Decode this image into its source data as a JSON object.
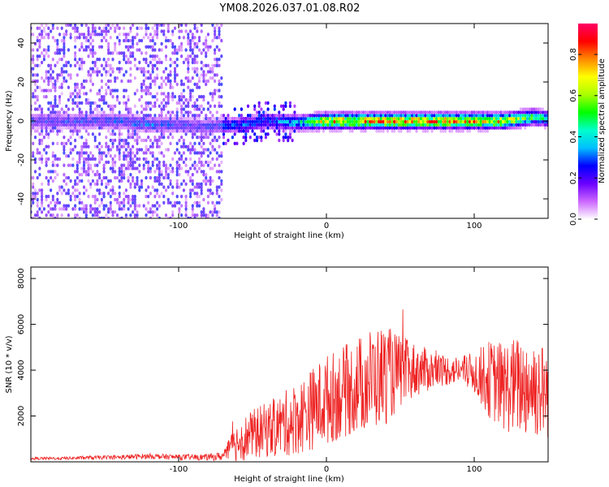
{
  "title": "YM08.2026.037.01.08.R02",
  "chart_data": [
    {
      "type": "heatmap",
      "xlabel": "Height of straight line (km)",
      "ylabel": "Frequency (Hz)",
      "xlim": [
        -200,
        150
      ],
      "ylim": [
        -50,
        50
      ],
      "x_ticks": [
        -100,
        0,
        100
      ],
      "y_ticks": [
        -40,
        -20,
        0,
        20,
        40
      ],
      "colorbar": {
        "label": "Normalized spectral amplitude",
        "range": [
          0,
          0.95
        ],
        "ticks": [
          "0.0",
          "0.2",
          "0.4",
          "0.6",
          "0.8"
        ],
        "colors": [
          "#ffffff",
          "#cc66ff",
          "#6a00ff",
          "#0000ff",
          "#00bfff",
          "#00ffcc",
          "#00ff00",
          "#aaff00",
          "#ffff00",
          "#ff8800",
          "#ff0000",
          "#ff0066"
        ]
      },
      "ridge": {
        "description_free_values": true,
        "x": [
          -160,
          -140,
          -120,
          -100,
          -80,
          -60,
          -40,
          -20,
          0,
          20,
          40,
          60,
          80,
          100,
          120,
          140,
          150
        ],
        "freq_center": [
          0,
          0,
          -2,
          -2,
          -3,
          -2,
          0,
          -1,
          0,
          0,
          0,
          0,
          0,
          0,
          0,
          2,
          1
        ],
        "peak_amplitude": [
          0.3,
          0.35,
          0.35,
          0.3,
          0.3,
          0.35,
          0.35,
          0.45,
          0.85,
          0.9,
          0.9,
          0.9,
          0.9,
          0.9,
          0.85,
          0.6,
          0.5
        ]
      }
    },
    {
      "type": "line",
      "xlabel": "Height of straight line (km)",
      "ylabel": "SNR (10 * v/v)",
      "xlim": [
        -200,
        150
      ],
      "ylim": [
        0,
        8500
      ],
      "x_ticks": [
        -100,
        0,
        100
      ],
      "y_ticks": [
        2000,
        4000,
        6000,
        8000
      ],
      "color": "#ee2222",
      "envelope": {
        "x": [
          -200,
          -180,
          -160,
          -140,
          -120,
          -100,
          -80,
          -70,
          -60,
          -50,
          -40,
          -30,
          -20,
          -10,
          0,
          10,
          20,
          30,
          40,
          50,
          60,
          70,
          80,
          90,
          100,
          110,
          120,
          130,
          140,
          150
        ],
        "mean": [
          150,
          150,
          180,
          200,
          250,
          200,
          200,
          250,
          900,
          1200,
          1400,
          1600,
          1900,
          2300,
          2700,
          3000,
          3300,
          3600,
          3800,
          3900,
          4000,
          4000,
          4000,
          4000,
          3900,
          3600,
          3300,
          3300,
          3300,
          3000
        ],
        "amp": [
          60,
          60,
          80,
          100,
          120,
          120,
          140,
          200,
          900,
          1100,
          1200,
          1400,
          1600,
          1800,
          2000,
          2000,
          2100,
          2300,
          2200,
          1600,
          1200,
          900,
          700,
          600,
          900,
          1700,
          2000,
          2200,
          2300,
          2000
        ]
      }
    }
  ]
}
